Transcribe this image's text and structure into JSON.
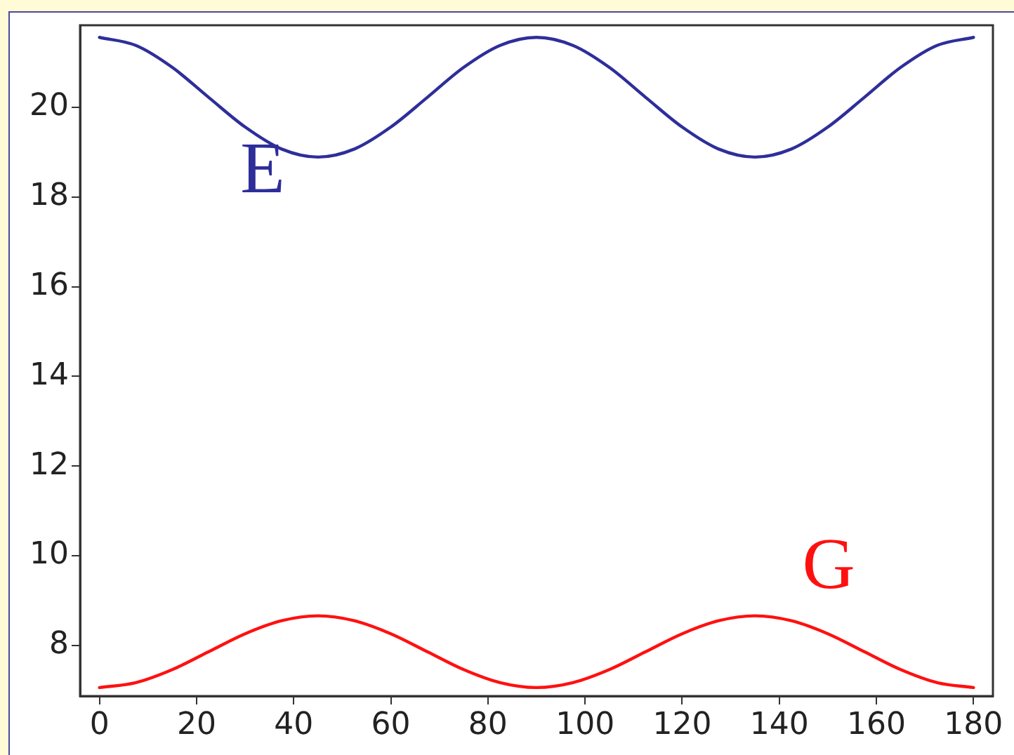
{
  "chart_data": {
    "type": "line",
    "x": [
      0,
      7.5,
      15,
      22.5,
      30,
      37.5,
      45,
      52.5,
      60,
      67.5,
      75,
      82.5,
      90,
      97.5,
      105,
      112.5,
      120,
      127.5,
      135,
      142.5,
      150,
      157.5,
      165,
      172.5,
      180
    ],
    "series": [
      {
        "name": "E",
        "color": "#2e2e9a",
        "values": [
          21.56,
          21.38,
          20.89,
          20.22,
          19.56,
          19.07,
          18.89,
          19.07,
          19.56,
          20.22,
          20.89,
          21.38,
          21.56,
          21.38,
          20.89,
          20.22,
          19.56,
          19.07,
          18.89,
          19.07,
          19.56,
          20.22,
          20.89,
          21.38,
          21.56
        ]
      },
      {
        "name": "G",
        "color": "#ff1010",
        "values": [
          7.06,
          7.17,
          7.46,
          7.86,
          8.26,
          8.55,
          8.66,
          8.55,
          8.26,
          7.86,
          7.46,
          7.17,
          7.06,
          7.17,
          7.46,
          7.86,
          8.26,
          8.55,
          8.66,
          8.55,
          8.26,
          7.86,
          7.46,
          7.17,
          7.06
        ]
      }
    ],
    "xlim": [
      -4,
      184
    ],
    "xticks": [
      0,
      20,
      40,
      60,
      80,
      100,
      120,
      140,
      160,
      180
    ],
    "ylim": [
      6.87,
      21.83
    ],
    "yticks": [
      8,
      10,
      12,
      14,
      16,
      18,
      20
    ],
    "grid": false,
    "legend": false,
    "marker": "none",
    "line_style": "solid"
  }
}
